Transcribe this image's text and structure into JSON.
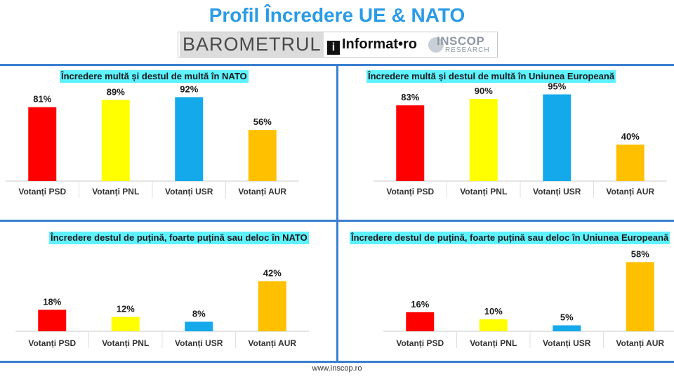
{
  "title": "Profil Încredere UE & NATO",
  "logos": {
    "barometrul": "BAROMETRUL",
    "informat_i": "i",
    "informat": "Informat•ro",
    "inscop": "INSCOP",
    "research": "RESEARCH"
  },
  "footer": "www.inscop.ro",
  "colors": {
    "psd": "#ff0000",
    "pnl": "#ffff00",
    "usr": "#14a9ea",
    "aur": "#ffc000",
    "divider": "#3a7fd0"
  },
  "chart_data": [
    {
      "type": "bar",
      "title": "Încredere multă și destul de multă în NATO",
      "categories": [
        "Votanți PSD",
        "Votanți PNL",
        "Votanți USR",
        "Votanți AUR"
      ],
      "values": [
        81,
        89,
        92,
        56
      ],
      "labels": [
        "81%",
        "89%",
        "92%",
        "56%"
      ],
      "ylim": [
        0,
        100
      ]
    },
    {
      "type": "bar",
      "title": "Încredere multă și destul de multă în Uniunea Europeană",
      "categories": [
        "Votanți PSD",
        "Votanți PNL",
        "Votanți USR",
        "Votanți AUR"
      ],
      "values": [
        83,
        90,
        95,
        40
      ],
      "labels": [
        "83%",
        "90%",
        "95%",
        "40%"
      ],
      "ylim": [
        0,
        100
      ]
    },
    {
      "type": "bar",
      "title": "Încredere destul de puțină, foarte puțină sau deloc în NATO",
      "categories": [
        "Votanți PSD",
        "Votanți PNL",
        "Votanți USR",
        "Votanți AUR"
      ],
      "values": [
        18,
        12,
        8,
        42
      ],
      "labels": [
        "18%",
        "12%",
        "8%",
        "42%"
      ],
      "ylim": [
        0,
        60
      ]
    },
    {
      "type": "bar",
      "title": "Încredere destul de puțină, foarte puțină sau deloc în Uniunea Europeană",
      "categories": [
        "Votanți PSD",
        "Votanți PNL",
        "Votanți USR",
        "Votanți AUR"
      ],
      "values": [
        16,
        10,
        5,
        58
      ],
      "labels": [
        "16%",
        "10%",
        "5%",
        "58%"
      ],
      "ylim": [
        0,
        60
      ]
    }
  ]
}
